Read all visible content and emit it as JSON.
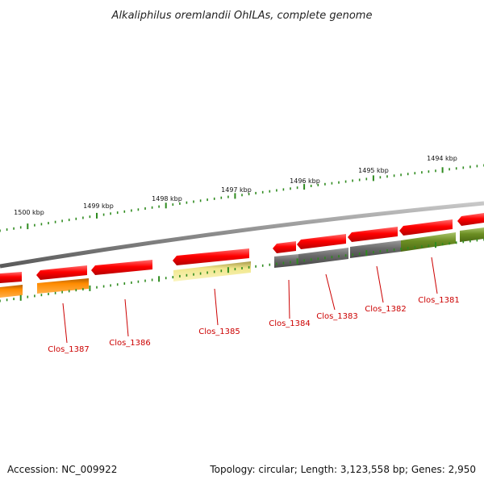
{
  "title": "Alkaliphilus oremlandii OhILAs, complete genome",
  "colors": {
    "backbone": "#8a8a8a",
    "tick": "#2e8b1e",
    "label": "#cc0000"
  },
  "scale_ticks": [
    "1500 kbp",
    "1499 kbp",
    "1498 kbp",
    "1497 kbp",
    "1496 kbp",
    "1495 kbp",
    "1494 kbp"
  ],
  "genes": [
    {
      "name": "Clos_1387",
      "color": "#ff8c00"
    },
    {
      "name": "Clos_1386",
      "color": "#ff0000"
    },
    {
      "name": "Clos_1385",
      "color": "#f0e68c"
    },
    {
      "name": "Clos_1384",
      "color": "#696969"
    },
    {
      "name": "Clos_1383",
      "color": "#696969"
    },
    {
      "name": "Clos_1382",
      "color": "#696969"
    },
    {
      "name": "Clos_1381",
      "color": "#6b8e23"
    }
  ],
  "footer": {
    "accession": "Accession: NC_009922",
    "summary": "Topology: circular; Length: 3,123,558 bp; Genes: 2,950"
  }
}
